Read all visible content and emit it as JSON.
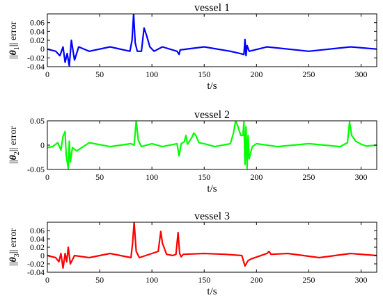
{
  "chart_data": [
    {
      "type": "line",
      "title": "vessel 1",
      "xlabel": "t/s",
      "ylabel": {
        "prefix": "||",
        "symbol": "θ",
        "subscript": "1",
        "suffix": "|| error"
      },
      "xlim": [
        0,
        315
      ],
      "ylim": [
        -0.04,
        0.08
      ],
      "xticks": [
        "0",
        "50",
        "100",
        "150",
        "200",
        "250",
        "300"
      ],
      "yticks": [
        "0.06",
        "0.04",
        "0.02",
        "0",
        "-0.02",
        "-0.04"
      ],
      "color": "#0000ff",
      "series": [
        {
          "x": [
            0,
            8,
            12,
            15,
            17,
            19,
            21,
            23,
            26,
            30,
            40,
            60,
            79,
            81,
            82.5,
            84,
            86,
            90,
            92.5,
            95,
            98,
            102,
            110,
            124,
            126,
            127,
            150,
            175,
            188,
            189,
            190,
            191,
            193,
            210,
            250,
            290,
            315
          ],
          "y": [
            0,
            -0.005,
            -0.015,
            0.005,
            -0.03,
            -0.01,
            -0.038,
            0.02,
            -0.025,
            0.005,
            -0.005,
            0.005,
            -0.005,
            0.02,
            0.08,
            0.015,
            -0.005,
            -0.005,
            0.048,
            0.03,
            0.005,
            -0.005,
            0.005,
            -0.005,
            -0.012,
            -0.002,
            0.005,
            -0.005,
            -0.012,
            0.022,
            -0.015,
            0.008,
            -0.005,
            0.005,
            -0.005,
            0.005,
            0
          ]
        }
      ]
    },
    {
      "type": "line",
      "title": "vessel 2",
      "xlabel": "t/s",
      "ylabel": {
        "prefix": "||",
        "symbol": "θ",
        "subscript": "2",
        "suffix": "|| error"
      },
      "xlim": [
        0,
        315
      ],
      "ylim": [
        -0.05,
        0.05
      ],
      "xticks": [
        "0",
        "50",
        "100",
        "150",
        "200",
        "250",
        "300"
      ],
      "yticks": [
        "0.05",
        "0",
        "-0.05"
      ],
      "color": "#00ff00",
      "series": [
        {
          "x": [
            0,
            5,
            10,
            13,
            15,
            17,
            18,
            20,
            21,
            22,
            24,
            28,
            40,
            60,
            80,
            83,
            85,
            87,
            90,
            100,
            110,
            124,
            126,
            128,
            131,
            132.5,
            134,
            138,
            140,
            142,
            145,
            150,
            160,
            175,
            178,
            180,
            182,
            185,
            187,
            188,
            189,
            190,
            191,
            192,
            193,
            196,
            200,
            220,
            250,
            280,
            287,
            289,
            291,
            295,
            300,
            305,
            315
          ],
          "y": [
            -0.005,
            -0.003,
            0.005,
            -0.01,
            0.018,
            0.028,
            -0.02,
            -0.048,
            0.008,
            -0.035,
            -0.005,
            -0.012,
            0.005,
            -0.003,
            0.003,
            0.0,
            0.05,
            0.01,
            -0.003,
            0.003,
            -0.003,
            0.003,
            -0.022,
            0.003,
            0.007,
            0.02,
            0.002,
            0.015,
            0.025,
            0.02,
            0.005,
            0.003,
            -0.003,
            0.003,
            0.025,
            0.05,
            0.04,
            0.02,
            0.02,
            0.048,
            -0.04,
            0.038,
            -0.048,
            0.02,
            -0.028,
            -0.003,
            0.003,
            -0.003,
            0.003,
            -0.003,
            0.005,
            0.048,
            0.02,
            0.008,
            0.002,
            -0.002,
            0.0
          ]
        }
      ]
    },
    {
      "type": "line",
      "title": "vessel 3",
      "xlabel": "t/s",
      "ylabel": {
        "prefix": "||",
        "symbol": "θ",
        "subscript": "3",
        "suffix": "|| error"
      },
      "xlim": [
        0,
        315
      ],
      "ylim": [
        -0.04,
        0.08
      ],
      "xticks": [
        "0",
        "50",
        "100",
        "150",
        "200",
        "250",
        "300"
      ],
      "yticks": [
        "0.06",
        "0.04",
        "0.02",
        "0",
        "-0.02",
        "-0.04"
      ],
      "color": "#ff0000",
      "series": [
        {
          "x": [
            0,
            8,
            11,
            13,
            15,
            17,
            18.5,
            20,
            22,
            26,
            40,
            60,
            80,
            81.5,
            83,
            85,
            88,
            100,
            106,
            108.5,
            110,
            114,
            120,
            123,
            125,
            126.5,
            128,
            130,
            150,
            170,
            186,
            189,
            192,
            195,
            210,
            212,
            214,
            230,
            260,
            290,
            315
          ],
          "y": [
            0,
            -0.005,
            -0.015,
            0.005,
            -0.03,
            0.005,
            -0.015,
            0.02,
            -0.02,
            0.0,
            -0.005,
            0.005,
            -0.005,
            0.03,
            0.08,
            0.01,
            -0.005,
            0.005,
            0.01,
            0.058,
            0.03,
            0.003,
            0.0,
            0.003,
            0.055,
            0.005,
            -0.003,
            0.003,
            0.005,
            0.003,
            0.0,
            -0.025,
            -0.012,
            -0.008,
            0.005,
            0.01,
            0.003,
            0.005,
            -0.005,
            0.005,
            0
          ]
        }
      ]
    }
  ]
}
